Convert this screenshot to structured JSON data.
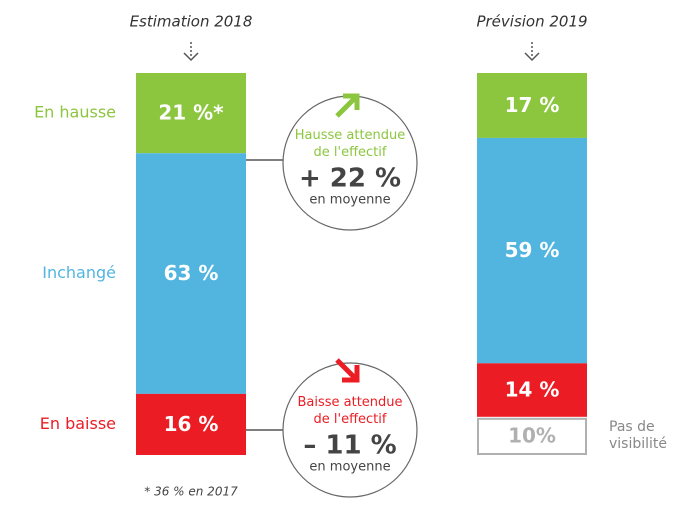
{
  "chart_data": {
    "type": "stacked_bar",
    "categories": [
      "Estimation 2018",
      "Prévision 2019"
    ],
    "series": [
      {
        "name": "En hausse",
        "color": "#8cc63f",
        "values": [
          21,
          17
        ],
        "value_labels": [
          "21 %*",
          "17 %"
        ]
      },
      {
        "name": "Inchangé",
        "color": "#52b5e0",
        "values": [
          63,
          59
        ],
        "value_labels": [
          "63 %",
          "59 %"
        ]
      },
      {
        "name": "En baisse",
        "color": "#ec1c24",
        "values": [
          16,
          14
        ],
        "value_labels": [
          "16 %",
          "14 %"
        ]
      },
      {
        "name": "Pas de visibilité",
        "color": "#b0b0b0",
        "style": "outline",
        "values": [
          null,
          10
        ],
        "value_labels": [
          null,
          "10%"
        ]
      }
    ],
    "annotations": [
      {
        "text": "Hausse attendue de l'effectif",
        "value": "+ 22 %",
        "note": "en moyenne",
        "color": "#8cc63f"
      },
      {
        "text": "Baisse attendue de l'effectif",
        "value": "– 11 %",
        "note": "en moyenne",
        "color": "#ec1c24"
      }
    ],
    "footnote": "* 36 % en 2017"
  }
}
